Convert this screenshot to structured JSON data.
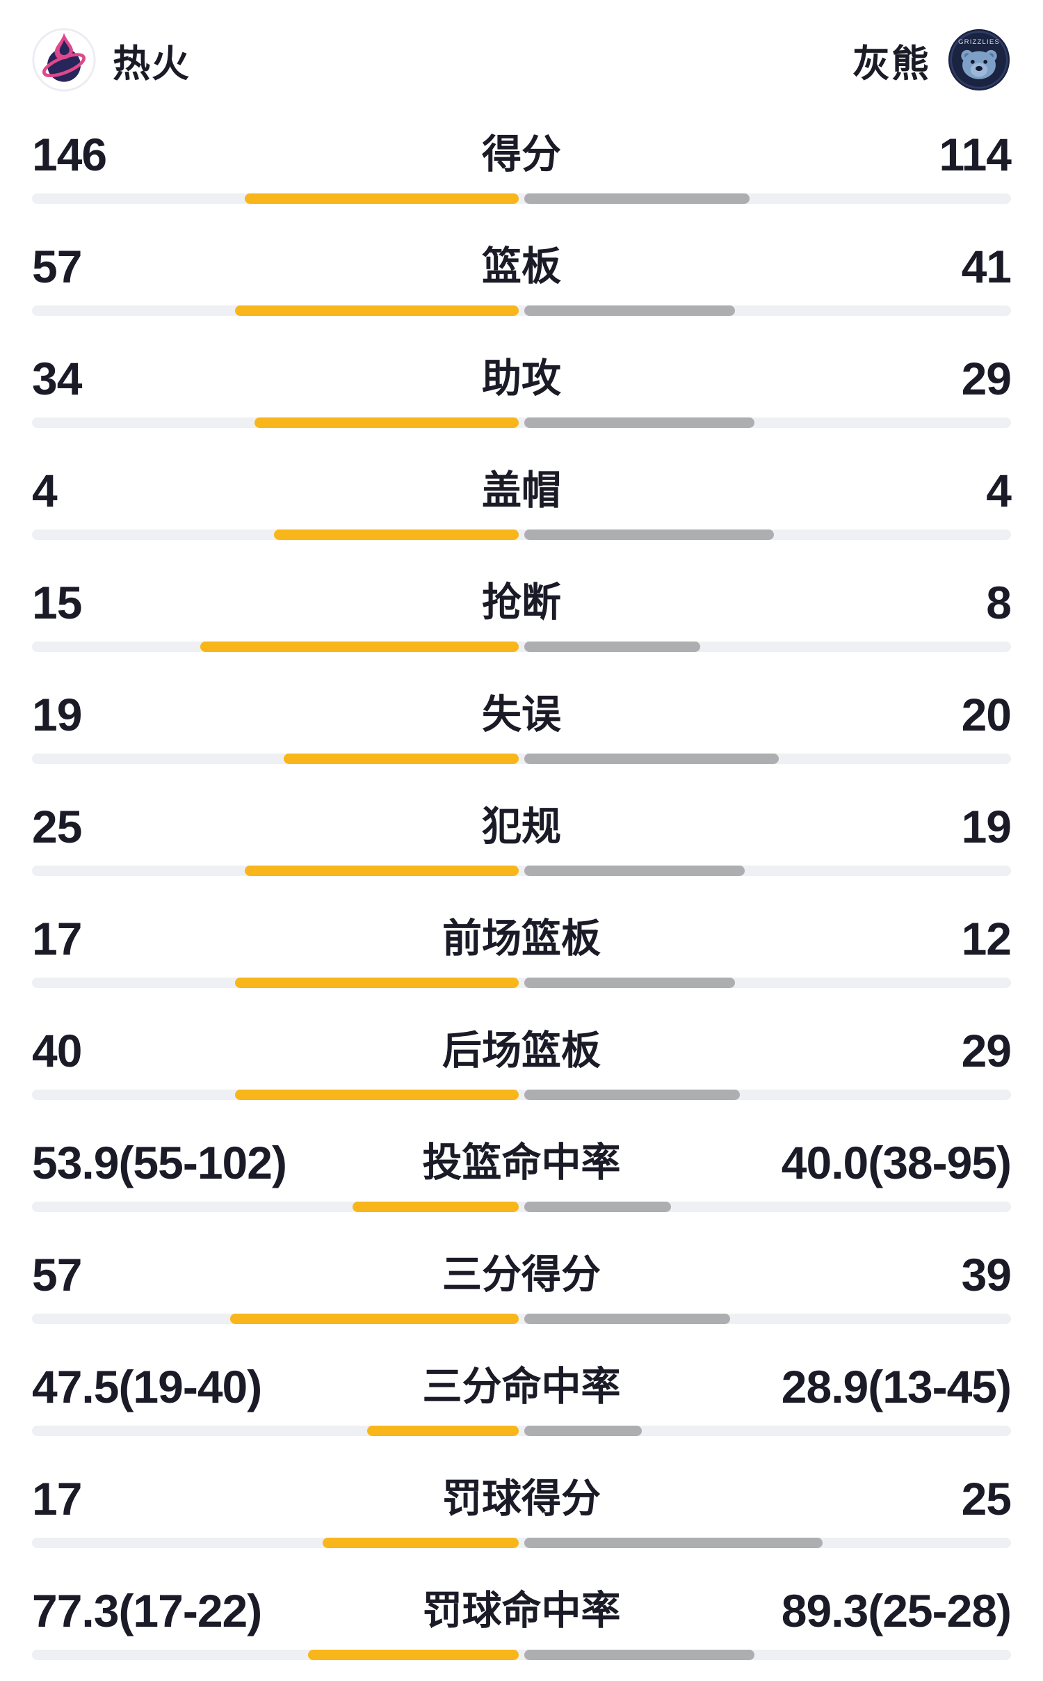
{
  "header": {
    "home": {
      "name": "热火"
    },
    "away": {
      "name": "灰熊",
      "logo_text": "GRIZZLIES"
    }
  },
  "colors": {
    "home_bar": "#F8B61A",
    "away_bar": "#ADAEB0",
    "track": "#EEF0F3",
    "text": "#1B1B28"
  },
  "chart_data": {
    "type": "bar",
    "orientation": "bilateral-horizontal",
    "teams": [
      "热火",
      "灰熊"
    ],
    "home_color": "#F8B61A",
    "away_color": "#ADAEB0",
    "stats": [
      {
        "label": "得分",
        "home": "146",
        "away": "114",
        "home_value": 146,
        "away_value": 114,
        "home_frac": 0.56,
        "away_frac": 0.46
      },
      {
        "label": "篮板",
        "home": "57",
        "away": "41",
        "home_value": 57,
        "away_value": 41,
        "home_frac": 0.58,
        "away_frac": 0.43
      },
      {
        "label": "助攻",
        "home": "34",
        "away": "29",
        "home_value": 34,
        "away_value": 29,
        "home_frac": 0.54,
        "away_frac": 0.47
      },
      {
        "label": "盖帽",
        "home": "4",
        "away": "4",
        "home_value": 4,
        "away_value": 4,
        "home_frac": 0.5,
        "away_frac": 0.51
      },
      {
        "label": "抢断",
        "home": "15",
        "away": "8",
        "home_value": 15,
        "away_value": 8,
        "home_frac": 0.65,
        "away_frac": 0.36
      },
      {
        "label": "失误",
        "home": "19",
        "away": "20",
        "home_value": 19,
        "away_value": 20,
        "home_frac": 0.48,
        "away_frac": 0.52
      },
      {
        "label": "犯规",
        "home": "25",
        "away": "19",
        "home_value": 25,
        "away_value": 19,
        "home_frac": 0.56,
        "away_frac": 0.45
      },
      {
        "label": "前场篮板",
        "home": "17",
        "away": "12",
        "home_value": 17,
        "away_value": 12,
        "home_frac": 0.58,
        "away_frac": 0.43
      },
      {
        "label": "后场篮板",
        "home": "40",
        "away": "29",
        "home_value": 40,
        "away_value": 29,
        "home_frac": 0.58,
        "away_frac": 0.44
      },
      {
        "label": "投篮命中率",
        "home": "53.9(55-102)",
        "away": "40.0(38-95)",
        "home_value": 53.9,
        "away_value": 40.0,
        "home_frac": 0.34,
        "away_frac": 0.3
      },
      {
        "label": "三分得分",
        "home": "57",
        "away": "39",
        "home_value": 57,
        "away_value": 39,
        "home_frac": 0.59,
        "away_frac": 0.42
      },
      {
        "label": "三分命中率",
        "home": "47.5(19-40)",
        "away": "28.9(13-45)",
        "home_value": 47.5,
        "away_value": 28.9,
        "home_frac": 0.31,
        "away_frac": 0.24
      },
      {
        "label": "罚球得分",
        "home": "17",
        "away": "25",
        "home_value": 17,
        "away_value": 25,
        "home_frac": 0.4,
        "away_frac": 0.61
      },
      {
        "label": "罚球命中率",
        "home": "77.3(17-22)",
        "away": "89.3(25-28)",
        "home_value": 77.3,
        "away_value": 89.3,
        "home_frac": 0.43,
        "away_frac": 0.47
      }
    ]
  }
}
